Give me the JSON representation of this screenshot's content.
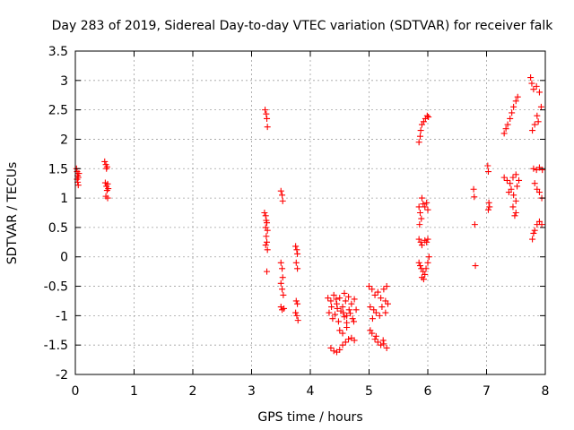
{
  "chart_data": {
    "type": "scatter",
    "title": "Day 283 of 2019, Sidereal Day-to-day VTEC variation (SDTVAR) for receiver falk",
    "xlabel": "GPS time / hours",
    "ylabel": "SDTVAR / TECUs",
    "xlim": [
      0,
      8
    ],
    "ylim": [
      -2,
      3.5
    ],
    "xticks": [
      "0",
      "1",
      "2",
      "3",
      "4",
      "5",
      "6",
      "7",
      "8"
    ],
    "yticks": [
      "-2",
      "-1.5",
      "-1",
      "-0.5",
      "0",
      "0.5",
      "1",
      "1.5",
      "2",
      "2.5",
      "3",
      "3.5"
    ],
    "grid": true,
    "marker": "+",
    "color": "#ff0000",
    "series": [
      {
        "name": "SDTVAR",
        "points": [
          [
            0.02,
            1.5
          ],
          [
            0.03,
            1.45
          ],
          [
            0.04,
            1.38
          ],
          [
            0.03,
            1.32
          ],
          [
            0.04,
            1.27
          ],
          [
            0.05,
            1.22
          ],
          [
            0.05,
            1.35
          ],
          [
            0.06,
            1.42
          ],
          [
            0.5,
            1.62
          ],
          [
            0.52,
            1.57
          ],
          [
            0.53,
            1.5
          ],
          [
            0.54,
            1.53
          ],
          [
            0.51,
            1.26
          ],
          [
            0.53,
            1.2
          ],
          [
            0.55,
            1.24
          ],
          [
            0.54,
            1.13
          ],
          [
            0.52,
            1.03
          ],
          [
            0.55,
            1.0
          ],
          [
            0.56,
            1.16
          ],
          [
            3.23,
            2.5
          ],
          [
            3.25,
            2.43
          ],
          [
            3.26,
            2.35
          ],
          [
            3.27,
            2.21
          ],
          [
            3.22,
            0.75
          ],
          [
            3.24,
            0.7
          ],
          [
            3.25,
            0.62
          ],
          [
            3.26,
            0.58
          ],
          [
            3.24,
            0.5
          ],
          [
            3.27,
            0.45
          ],
          [
            3.25,
            0.35
          ],
          [
            3.26,
            0.25
          ],
          [
            3.24,
            0.2
          ],
          [
            3.27,
            0.12
          ],
          [
            3.26,
            -0.25
          ],
          [
            3.5,
            1.12
          ],
          [
            3.52,
            1.05
          ],
          [
            3.53,
            0.95
          ],
          [
            3.5,
            -0.1
          ],
          [
            3.52,
            -0.2
          ],
          [
            3.53,
            -0.35
          ],
          [
            3.5,
            -0.45
          ],
          [
            3.52,
            -0.55
          ],
          [
            3.54,
            -0.65
          ],
          [
            3.5,
            -0.85
          ],
          [
            3.52,
            -0.9
          ],
          [
            3.55,
            -0.88
          ],
          [
            3.75,
            0.18
          ],
          [
            3.77,
            0.12
          ],
          [
            3.78,
            0.05
          ],
          [
            3.76,
            -0.1
          ],
          [
            3.78,
            -0.2
          ],
          [
            3.76,
            -0.75
          ],
          [
            3.78,
            -0.8
          ],
          [
            3.75,
            -0.95
          ],
          [
            3.77,
            -1.0
          ],
          [
            3.79,
            -1.08
          ],
          [
            4.3,
            -0.7
          ],
          [
            4.35,
            -0.75
          ],
          [
            4.4,
            -0.65
          ],
          [
            4.45,
            -0.8
          ],
          [
            4.5,
            -0.7
          ],
          [
            4.55,
            -0.85
          ],
          [
            4.6,
            -0.75
          ],
          [
            4.65,
            -0.68
          ],
          [
            4.7,
            -0.8
          ],
          [
            4.75,
            -0.72
          ],
          [
            4.32,
            -0.95
          ],
          [
            4.38,
            -1.05
          ],
          [
            4.42,
            -0.98
          ],
          [
            4.48,
            -1.1
          ],
          [
            4.52,
            -0.92
          ],
          [
            4.58,
            -1.02
          ],
          [
            4.62,
            -1.12
          ],
          [
            4.68,
            -0.96
          ],
          [
            4.72,
            -1.05
          ],
          [
            4.78,
            -0.9
          ],
          [
            4.35,
            -1.55
          ],
          [
            4.4,
            -1.6
          ],
          [
            4.45,
            -1.62
          ],
          [
            4.5,
            -1.58
          ],
          [
            4.55,
            -1.5
          ],
          [
            4.6,
            -1.45
          ],
          [
            4.65,
            -1.4
          ],
          [
            4.7,
            -1.38
          ],
          [
            4.75,
            -1.42
          ],
          [
            4.55,
            -1.3
          ],
          [
            4.62,
            -1.2
          ],
          [
            4.5,
            -1.25
          ],
          [
            4.36,
            -0.85
          ],
          [
            4.46,
            -0.88
          ],
          [
            4.56,
            -0.95
          ],
          [
            4.66,
            -0.9
          ],
          [
            4.44,
            -0.72
          ],
          [
            4.58,
            -0.62
          ],
          [
            4.62,
            -1.0
          ],
          [
            4.74,
            -1.1
          ],
          [
            5.0,
            -0.5
          ],
          [
            5.05,
            -0.55
          ],
          [
            5.1,
            -0.65
          ],
          [
            5.15,
            -0.6
          ],
          [
            5.2,
            -0.7
          ],
          [
            5.25,
            -0.55
          ],
          [
            5.3,
            -0.5
          ],
          [
            5.28,
            -0.75
          ],
          [
            5.02,
            -0.85
          ],
          [
            5.08,
            -0.9
          ],
          [
            5.12,
            -0.95
          ],
          [
            5.18,
            -1.0
          ],
          [
            5.22,
            -0.85
          ],
          [
            5.28,
            -0.95
          ],
          [
            5.32,
            -0.8
          ],
          [
            5.06,
            -1.05
          ],
          [
            5.05,
            -1.3
          ],
          [
            5.1,
            -1.4
          ],
          [
            5.15,
            -1.45
          ],
          [
            5.2,
            -1.5
          ],
          [
            5.25,
            -1.48
          ],
          [
            5.3,
            -1.55
          ],
          [
            5.12,
            -1.35
          ],
          [
            5.02,
            -1.25
          ],
          [
            5.24,
            -1.42
          ],
          [
            5.85,
            1.95
          ],
          [
            5.87,
            2.05
          ],
          [
            5.9,
            2.25
          ],
          [
            5.93,
            2.3
          ],
          [
            5.96,
            2.35
          ],
          [
            5.99,
            2.4
          ],
          [
            6.01,
            2.38
          ],
          [
            5.88,
            2.15
          ],
          [
            5.85,
            0.85
          ],
          [
            5.87,
            0.75
          ],
          [
            5.89,
            0.65
          ],
          [
            5.86,
            0.55
          ],
          [
            5.92,
            0.9
          ],
          [
            5.95,
            0.85
          ],
          [
            5.98,
            0.92
          ],
          [
            6.0,
            0.8
          ],
          [
            5.9,
            1.0
          ],
          [
            5.85,
            0.3
          ],
          [
            5.88,
            0.25
          ],
          [
            5.9,
            0.2
          ],
          [
            5.95,
            0.28
          ],
          [
            5.98,
            0.25
          ],
          [
            6.0,
            0.3
          ],
          [
            5.85,
            -0.1
          ],
          [
            5.87,
            -0.15
          ],
          [
            5.89,
            -0.2
          ],
          [
            5.92,
            -0.25
          ],
          [
            5.95,
            -0.3
          ],
          [
            5.97,
            -0.2
          ],
          [
            6.0,
            -0.1
          ],
          [
            6.02,
            0.0
          ],
          [
            5.9,
            -0.35
          ],
          [
            5.93,
            -0.38
          ],
          [
            6.78,
            1.15
          ],
          [
            6.79,
            1.02
          ],
          [
            6.8,
            0.55
          ],
          [
            6.81,
            -0.15
          ],
          [
            7.02,
            1.55
          ],
          [
            7.03,
            1.45
          ],
          [
            7.04,
            0.92
          ],
          [
            7.05,
            0.85
          ],
          [
            7.03,
            0.8
          ],
          [
            7.3,
            2.1
          ],
          [
            7.33,
            2.18
          ],
          [
            7.36,
            2.25
          ],
          [
            7.4,
            2.35
          ],
          [
            7.43,
            2.45
          ],
          [
            7.46,
            2.55
          ],
          [
            7.5,
            2.65
          ],
          [
            7.53,
            2.72
          ],
          [
            7.3,
            1.35
          ],
          [
            7.35,
            1.3
          ],
          [
            7.4,
            1.25
          ],
          [
            7.45,
            1.35
          ],
          [
            7.5,
            1.4
          ],
          [
            7.55,
            1.3
          ],
          [
            7.42,
            1.15
          ],
          [
            7.46,
            1.05
          ],
          [
            7.5,
            0.95
          ],
          [
            7.45,
            0.85
          ],
          [
            7.5,
            0.75
          ],
          [
            7.48,
            0.7
          ],
          [
            7.38,
            1.1
          ],
          [
            7.52,
            1.2
          ],
          [
            7.75,
            3.05
          ],
          [
            7.77,
            2.95
          ],
          [
            7.8,
            2.85
          ],
          [
            7.85,
            2.9
          ],
          [
            7.9,
            2.8
          ],
          [
            7.93,
            2.55
          ],
          [
            7.86,
            2.4
          ],
          [
            7.82,
            2.25
          ],
          [
            7.78,
            2.15
          ],
          [
            7.88,
            2.3
          ],
          [
            7.8,
            1.5
          ],
          [
            7.85,
            1.48
          ],
          [
            7.9,
            1.52
          ],
          [
            7.95,
            1.48
          ],
          [
            7.82,
            1.25
          ],
          [
            7.86,
            1.15
          ],
          [
            7.9,
            1.1
          ],
          [
            7.94,
            1.0
          ],
          [
            7.78,
            0.3
          ],
          [
            7.8,
            0.4
          ],
          [
            7.82,
            0.45
          ],
          [
            7.86,
            0.55
          ],
          [
            7.9,
            0.6
          ],
          [
            7.94,
            0.55
          ]
        ]
      }
    ]
  }
}
